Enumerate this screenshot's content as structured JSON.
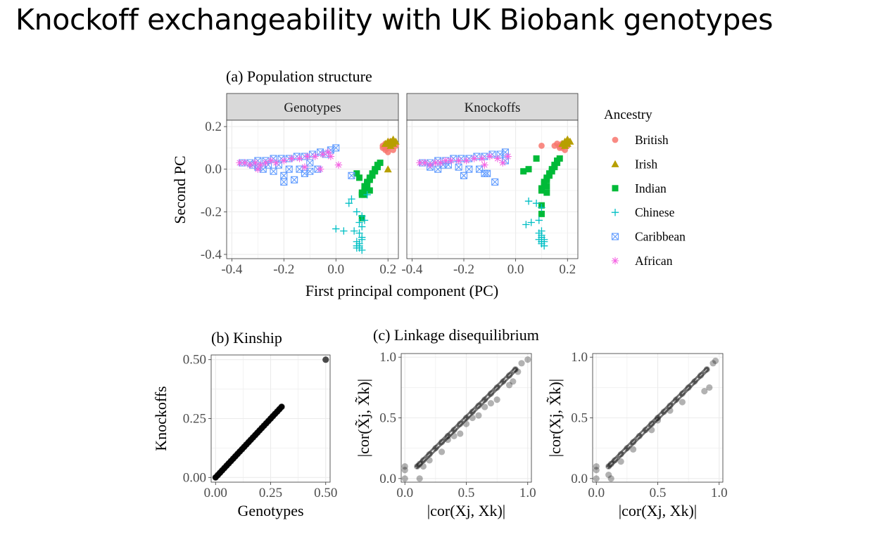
{
  "slide": {
    "title": "Knockoff exchangeability with UK Biobank genotypes"
  },
  "colors": {
    "british": "#F8766D",
    "irish": "#B79F00",
    "indian": "#00BA38",
    "chinese": "#00BFC4",
    "caribbean": "#619CFF",
    "african": "#F564E3",
    "panel_strip": "#D9D9D9",
    "grid": "#EBEBEB",
    "points": "#000000"
  },
  "chart_data": [
    {
      "id": "population_structure",
      "type": "scatter",
      "title": "(a) Population structure",
      "xlabel": "First principal component (PC)",
      "ylabel": "Second PC",
      "xlim": [
        -0.42,
        0.24
      ],
      "ylim": [
        -0.42,
        0.23
      ],
      "xticks": [
        -0.4,
        -0.2,
        0.0,
        0.2
      ],
      "xtick_labels": [
        "-0.4",
        "-0.2",
        "0.0",
        "0.2"
      ],
      "yticks": [
        -0.4,
        -0.2,
        0.0,
        0.2
      ],
      "ytick_labels": [
        "-0.4",
        "-0.2",
        "0.0",
        "0.2"
      ],
      "grid": true,
      "legend_title": "Ancestry",
      "legend_position": "right",
      "panels": [
        {
          "strip": "Genotypes",
          "series": [
            {
              "name": "British",
              "shape": "circle",
              "color": "#F8766D",
              "x": [
                0.18,
                0.19,
                0.2,
                0.21,
                0.22,
                0.2,
                0.19,
                0.21,
                0.18,
                0.22,
                0.2,
                0.23,
                0.19
              ],
              "y": [
                0.11,
                0.1,
                0.12,
                0.11,
                0.09,
                0.08,
                0.12,
                0.13,
                0.1,
                0.12,
                0.1,
                0.11,
                0.09
              ]
            },
            {
              "name": "Irish",
              "shape": "triangle",
              "color": "#B79F00",
              "x": [
                0.2,
                0.21,
                0.22,
                0.23,
                0.22,
                0.21,
                0.2,
                0.19,
                0.2
              ],
              "y": [
                0.12,
                0.13,
                0.14,
                0.13,
                0.12,
                0.11,
                0.13,
                0.12,
                0.0
              ]
            },
            {
              "name": "Indian",
              "shape": "square",
              "color": "#00BA38",
              "x": [
                0.1,
                0.11,
                0.12,
                0.13,
                0.14,
                0.15,
                0.16,
                0.17,
                0.12,
                0.11,
                0.13,
                0.15,
                0.1,
                0.14,
                0.16,
                0.12,
                0.09,
                0.08,
                0.1,
                0.11,
                0.13
              ],
              "y": [
                -0.12,
                -0.1,
                -0.08,
                -0.05,
                -0.03,
                -0.01,
                0.01,
                0.03,
                -0.06,
                -0.08,
                -0.04,
                0.0,
                -0.11,
                -0.02,
                0.02,
                -0.07,
                -0.04,
                -0.02,
                -0.23,
                -0.12,
                -0.1
              ]
            },
            {
              "name": "Chinese",
              "shape": "plus",
              "color": "#00BFC4",
              "x": [
                0.08,
                0.09,
                0.1,
                0.09,
                0.08,
                0.1,
                0.09,
                0.08,
                0.09,
                0.1,
                0.11,
                0.1,
                0.08,
                0.09,
                0.0,
                0.03,
                0.05,
                0.12,
                0.06,
                0.1,
                0.07
              ],
              "y": [
                -0.37,
                -0.36,
                -0.38,
                -0.35,
                -0.34,
                -0.33,
                -0.37,
                -0.36,
                -0.3,
                -0.27,
                -0.24,
                -0.22,
                -0.2,
                -0.25,
                -0.28,
                -0.29,
                -0.16,
                -0.12,
                -0.14,
                -0.32,
                -0.29
              ]
            },
            {
              "name": "Caribbean",
              "shape": "boxx",
              "color": "#619CFF",
              "x": [
                -0.36,
                -0.33,
                -0.3,
                -0.27,
                -0.24,
                -0.21,
                -0.18,
                -0.15,
                -0.12,
                -0.09,
                -0.06,
                -0.04,
                -0.02,
                0.0,
                -0.3,
                -0.26,
                -0.22,
                -0.18,
                -0.14,
                -0.1,
                -0.2,
                -0.16,
                -0.24,
                -0.07,
                -0.12,
                -0.2,
                -0.28,
                0.06,
                -0.32,
                -0.1
              ],
              "y": [
                0.03,
                0.03,
                0.04,
                0.04,
                0.05,
                0.05,
                0.05,
                0.06,
                0.06,
                0.07,
                0.08,
                0.07,
                0.09,
                0.1,
                0.01,
                0.02,
                0.02,
                0.0,
                0.0,
                -0.01,
                -0.03,
                -0.05,
                -0.01,
                0.0,
                -0.02,
                -0.06,
                0.0,
                -0.03,
                0.02,
                0.03
              ]
            },
            {
              "name": "African",
              "shape": "star",
              "color": "#F564E3",
              "x": [
                -0.37,
                -0.35,
                -0.33,
                -0.31,
                -0.29,
                -0.27,
                -0.25,
                -0.23,
                -0.2,
                -0.17,
                -0.14,
                -0.11,
                -0.08,
                -0.05,
                -0.03,
                -0.02,
                0.01,
                -0.06,
                -0.3,
                -0.12
              ],
              "y": [
                0.03,
                0.03,
                0.02,
                0.03,
                0.02,
                0.03,
                0.04,
                0.03,
                0.04,
                0.05,
                0.05,
                0.06,
                0.06,
                0.07,
                0.08,
                0.06,
                0.02,
                0.0,
                0.0,
                0.01
              ]
            }
          ]
        },
        {
          "strip": "Knockoffs",
          "series": [
            {
              "name": "British",
              "shape": "circle",
              "color": "#F8766D",
              "x": [
                0.1,
                0.15,
                0.17,
                0.18,
                0.19,
                0.2,
                0.19,
                0.17,
                0.16,
                0.18
              ],
              "y": [
                0.11,
                0.11,
                0.11,
                0.1,
                0.12,
                0.11,
                0.09,
                0.1,
                0.12,
                0.12
              ]
            },
            {
              "name": "Irish",
              "shape": "triangle",
              "color": "#B79F00",
              "x": [
                0.18,
                0.19,
                0.2,
                0.21,
                0.2,
                0.19
              ],
              "y": [
                0.12,
                0.13,
                0.14,
                0.13,
                0.12,
                0.11
              ]
            },
            {
              "name": "Indian",
              "shape": "square",
              "color": "#00BA38",
              "x": [
                0.1,
                0.11,
                0.12,
                0.13,
                0.14,
                0.15,
                0.16,
                0.17,
                0.12,
                0.11,
                0.13,
                0.15,
                0.1,
                0.14,
                0.16,
                0.12,
                0.05,
                0.03,
                0.08,
                0.1,
                0.12,
                0.1
              ],
              "y": [
                -0.09,
                -0.07,
                -0.05,
                -0.03,
                -0.01,
                0.01,
                0.03,
                0.05,
                -0.04,
                -0.06,
                -0.02,
                0.02,
                -0.1,
                0.0,
                0.04,
                -0.08,
                0.0,
                -0.01,
                0.05,
                -0.21,
                -0.11,
                -0.17
              ]
            },
            {
              "name": "Chinese",
              "shape": "plus",
              "color": "#00BFC4",
              "x": [
                0.1,
                0.11,
                0.1,
                0.09,
                0.1,
                0.11,
                0.1,
                0.09,
                0.1,
                0.11,
                0.04,
                0.06,
                0.08,
                0.1,
                0.05,
                0.09
              ],
              "y": [
                -0.34,
                -0.33,
                -0.32,
                -0.33,
                -0.35,
                -0.34,
                -0.31,
                -0.3,
                -0.29,
                -0.36,
                -0.26,
                -0.25,
                -0.16,
                -0.18,
                -0.15,
                -0.24
              ]
            },
            {
              "name": "Caribbean",
              "shape": "boxx",
              "color": "#619CFF",
              "x": [
                -0.36,
                -0.33,
                -0.3,
                -0.27,
                -0.24,
                -0.21,
                -0.18,
                -0.15,
                -0.12,
                -0.09,
                -0.06,
                -0.04,
                -0.33,
                -0.3,
                -0.26,
                -0.22,
                -0.18,
                -0.14,
                -0.11,
                -0.08,
                -0.12,
                -0.2,
                -0.04,
                -0.28
              ],
              "y": [
                0.03,
                0.03,
                0.04,
                0.04,
                0.05,
                0.05,
                0.05,
                0.06,
                0.06,
                0.07,
                0.07,
                0.08,
                0.01,
                0.0,
                0.02,
                0.01,
                0.0,
                0.0,
                -0.02,
                -0.06,
                -0.02,
                -0.03,
                0.04,
                0.02
              ]
            },
            {
              "name": "African",
              "shape": "star",
              "color": "#F564E3",
              "x": [
                -0.37,
                -0.35,
                -0.33,
                -0.31,
                -0.29,
                -0.27,
                -0.25,
                -0.22,
                -0.19,
                -0.16,
                -0.13,
                -0.1,
                -0.07,
                -0.03,
                -0.05,
                -0.12
              ],
              "y": [
                0.03,
                0.03,
                0.02,
                0.03,
                0.03,
                0.04,
                0.04,
                0.04,
                0.04,
                0.05,
                0.05,
                0.06,
                0.05,
                0.06,
                0.03,
                0.02
              ]
            }
          ]
        }
      ]
    },
    {
      "id": "kinship",
      "type": "scatter",
      "title": "(b) Kinship",
      "xlabel": "Genotypes",
      "ylabel": "Knockoffs",
      "xlim": [
        -0.02,
        0.52
      ],
      "ylim": [
        -0.02,
        0.52
      ],
      "xticks": [
        0.0,
        0.25,
        0.5
      ],
      "xtick_labels": [
        "0.00",
        "0.25",
        "0.50"
      ],
      "yticks": [
        0.0,
        0.25,
        0.5
      ],
      "ytick_labels": [
        "0.00",
        "0.25",
        "0.50"
      ],
      "grid": true,
      "points": {
        "x": [
          0.0,
          0.01,
          0.02,
          0.03,
          0.04,
          0.05,
          0.06,
          0.07,
          0.08,
          0.09,
          0.1,
          0.11,
          0.12,
          0.13,
          0.14,
          0.15,
          0.16,
          0.17,
          0.18,
          0.19,
          0.2,
          0.21,
          0.22,
          0.23,
          0.24,
          0.25,
          0.26,
          0.27,
          0.28,
          0.29,
          0.3,
          0.5
        ],
        "y": [
          0.0,
          0.01,
          0.02,
          0.03,
          0.04,
          0.05,
          0.06,
          0.07,
          0.08,
          0.09,
          0.1,
          0.11,
          0.12,
          0.13,
          0.14,
          0.15,
          0.16,
          0.17,
          0.18,
          0.19,
          0.2,
          0.21,
          0.22,
          0.23,
          0.24,
          0.25,
          0.26,
          0.27,
          0.28,
          0.29,
          0.3,
          0.5
        ]
      }
    },
    {
      "id": "ld_1",
      "type": "scatter",
      "title": "(c) Linkage disequilibrium",
      "xlabel": "|cor(Xj, Xk)|",
      "ylabel": "|cor(X̃j, X̃k)|",
      "xlim": [
        -0.03,
        1.03
      ],
      "ylim": [
        -0.03,
        1.03
      ],
      "xticks": [
        0.0,
        0.5,
        1.0
      ],
      "xtick_labels": [
        "0.0",
        "0.5",
        "1.0"
      ],
      "yticks": [
        0.0,
        0.5,
        1.0
      ],
      "ytick_labels": [
        "0.0",
        "0.5",
        "1.0"
      ],
      "grid": true,
      "points": {
        "x": [
          0.0,
          0.0,
          0.0,
          0.1,
          0.12,
          0.15,
          0.2,
          0.25,
          0.3,
          0.35,
          0.4,
          0.45,
          0.5,
          0.55,
          0.6,
          0.65,
          0.7,
          0.75,
          0.8,
          0.85,
          0.9,
          0.95,
          1.0,
          0.2,
          0.3,
          0.45,
          0.5,
          0.6,
          0.7,
          0.75,
          0.85,
          0.92,
          0.35,
          0.55,
          0.65,
          0.88,
          0.15,
          0.12,
          0.4
        ],
        "y": [
          0.0,
          0.07,
          0.1,
          0.1,
          0.12,
          0.15,
          0.2,
          0.25,
          0.3,
          0.35,
          0.4,
          0.45,
          0.5,
          0.55,
          0.6,
          0.65,
          0.7,
          0.75,
          0.8,
          0.85,
          0.9,
          0.95,
          0.98,
          0.15,
          0.22,
          0.37,
          0.45,
          0.52,
          0.62,
          0.65,
          0.77,
          0.88,
          0.32,
          0.5,
          0.59,
          0.8,
          0.1,
          0.0,
          0.35
        ]
      }
    },
    {
      "id": "ld_2",
      "type": "scatter",
      "title": "",
      "xlabel": "|cor(Xj, Xk)|",
      "ylabel": "|cor(Xj, X̃k)|",
      "xlim": [
        -0.03,
        1.03
      ],
      "ylim": [
        -0.03,
        1.03
      ],
      "xticks": [
        0.0,
        0.5,
        1.0
      ],
      "xtick_labels": [
        "0.0",
        "0.5",
        "1.0"
      ],
      "yticks": [
        0.0,
        0.5,
        1.0
      ],
      "ytick_labels": [
        "0.0",
        "0.5",
        "1.0"
      ],
      "grid": true,
      "points": {
        "x": [
          0.0,
          0.0,
          0.0,
          0.1,
          0.12,
          0.15,
          0.2,
          0.25,
          0.3,
          0.35,
          0.4,
          0.45,
          0.5,
          0.55,
          0.6,
          0.65,
          0.7,
          0.75,
          0.8,
          0.85,
          0.9,
          0.95,
          0.97,
          0.2,
          0.3,
          0.45,
          0.5,
          0.6,
          0.7,
          0.88,
          0.92,
          0.12,
          0.1
        ],
        "y": [
          0.0,
          0.07,
          0.1,
          0.1,
          0.12,
          0.15,
          0.2,
          0.25,
          0.3,
          0.35,
          0.4,
          0.45,
          0.5,
          0.55,
          0.6,
          0.65,
          0.7,
          0.75,
          0.8,
          0.85,
          0.9,
          0.95,
          0.97,
          0.14,
          0.24,
          0.4,
          0.48,
          0.56,
          0.63,
          0.72,
          0.75,
          0.0,
          0.03
        ]
      }
    }
  ]
}
